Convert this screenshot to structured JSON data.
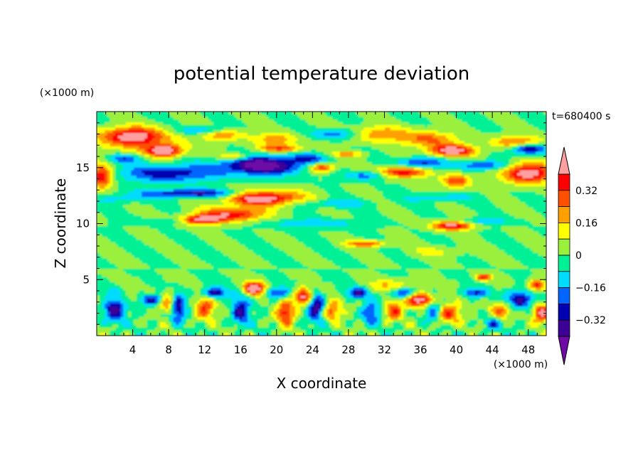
{
  "chart_data": {
    "type": "heatmap",
    "title": "potential temperature deviation",
    "xlabel": "X coordinate",
    "ylabel": "Z coordinate",
    "x_unit": "(×1000 m)",
    "y_unit": "(×1000 m)",
    "time_label": "t=680400 s",
    "xlim": [
      0,
      50
    ],
    "ylim": [
      0,
      20
    ],
    "x_ticks": [
      4,
      8,
      12,
      16,
      20,
      24,
      28,
      32,
      36,
      40,
      44,
      48
    ],
    "y_ticks": [
      5,
      10,
      15
    ],
    "colorbar": {
      "levels": [
        -0.4,
        -0.32,
        -0.24,
        -0.16,
        -0.08,
        0,
        0.08,
        0.16,
        0.24,
        0.32,
        0.4
      ],
      "labeled_ticks": [
        0.32,
        0.16,
        0,
        -0.16,
        -0.32
      ],
      "colors": [
        "#ffa0a0",
        "#ff0000",
        "#ff5000",
        "#ffa000",
        "#ffff00",
        "#9bf03c",
        "#00f096",
        "#00dcff",
        "#0066ff",
        "#0000b0",
        "#3c0096",
        "#6e0aa5"
      ]
    }
  }
}
